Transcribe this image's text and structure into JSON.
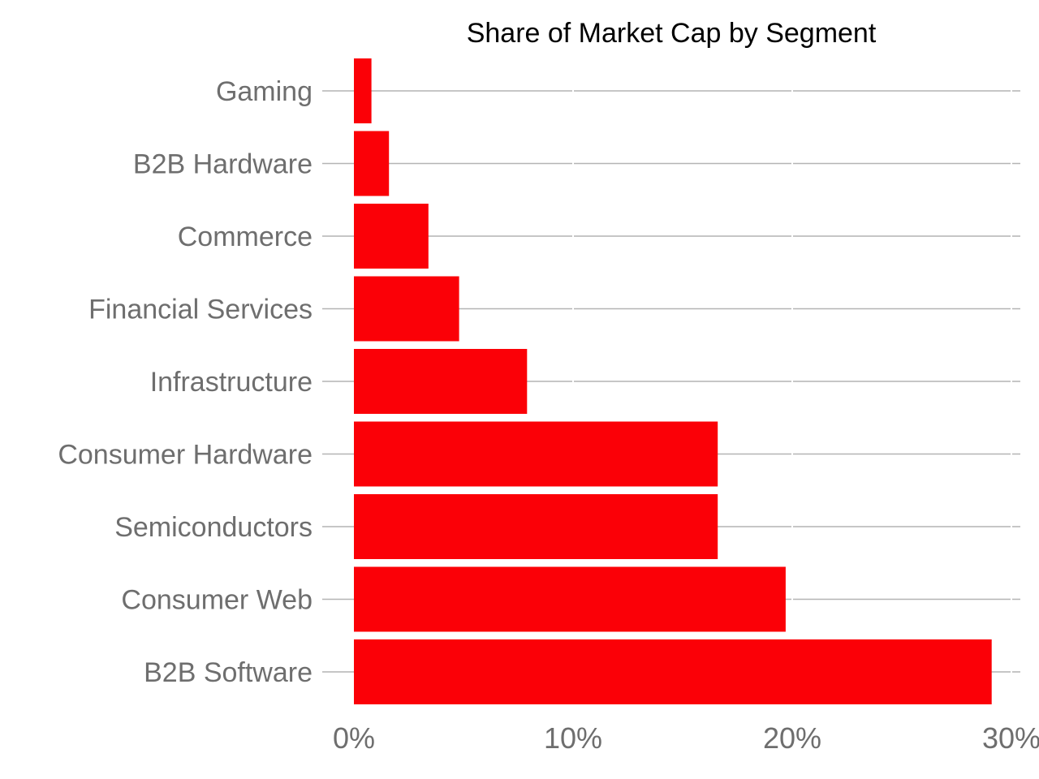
{
  "chart_data": {
    "type": "bar",
    "orientation": "horizontal",
    "title": "Share of Market Cap by Segment",
    "xlabel": "",
    "ylabel": "",
    "categories": [
      "Gaming",
      "B2B Hardware",
      "Commerce",
      "Financial Services",
      "Infrastructure",
      "Consumer Hardware",
      "Semiconductors",
      "Consumer Web",
      "B2B Software"
    ],
    "values": [
      0.8,
      1.6,
      3.4,
      4.8,
      7.9,
      16.6,
      16.6,
      19.7,
      29.1
    ],
    "unit": "%",
    "xlim": [
      0,
      30
    ],
    "xticks": [
      0,
      10,
      20,
      30
    ],
    "xtick_labels": [
      "0%",
      "10%",
      "20%",
      "30%"
    ],
    "grid": true,
    "legend": "none",
    "bar_color": "#fb0007",
    "grid_color": "#b4b4b4",
    "label_color": "#6e6e6e",
    "title_color": "#000000"
  }
}
